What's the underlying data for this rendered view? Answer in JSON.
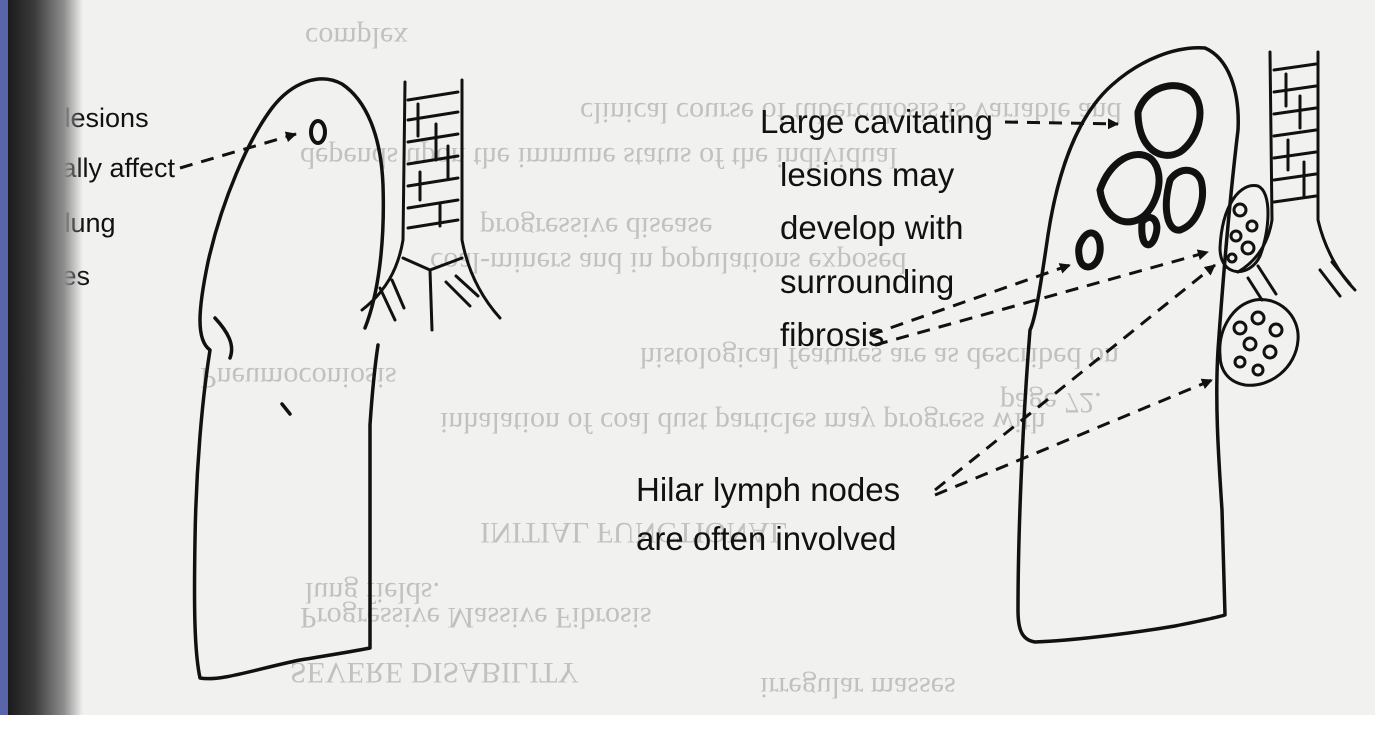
{
  "left_panel": {
    "label_lines": [
      "e lesions",
      "ically affect",
      "e lung",
      "ices"
    ]
  },
  "right_panel": {
    "cavity_label_lines": [
      "Large cavitating",
      "lesions may",
      "develop with",
      "surrounding",
      "fibrosis"
    ],
    "hilar_label_lines": [
      "Hilar lymph nodes",
      "are often involved"
    ]
  },
  "bleed_through": [
    "complex",
    "clinical course of tuberculosis is variable and",
    "depends upon the immune status of the individual",
    "progressive disease",
    "histological features are as described on",
    "page 72.",
    "coal-miners and in populations exposed",
    "Pneumoconiosis",
    "inhalation of coal dust particles may progress with",
    "INITIAL FUNCTIONAL",
    "Progressive Massive Fibrosis",
    "SEVERE DISABILITY",
    "lung fields.",
    "irregular masses"
  ],
  "colors": {
    "ink": "#111111",
    "paper": "#f1f1ef",
    "bleed": "#9a9a9a",
    "binding": "#5a64a8"
  }
}
